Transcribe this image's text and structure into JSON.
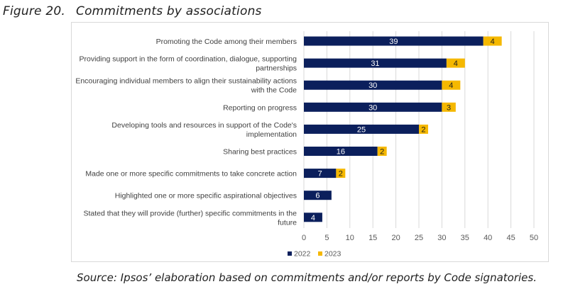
{
  "figure": {
    "number": "Figure 20.",
    "title": "Commitments by associations",
    "source": "Source: Ipsos’ elaboration based on commitments and/or reports by Code signatories."
  },
  "chart_data": {
    "type": "bar",
    "orientation": "horizontal",
    "stacked": true,
    "categories": [
      [
        "Promoting the Code among their members"
      ],
      [
        "Providing support in the form of coordination, dialogue, supporting",
        "partnerships"
      ],
      [
        "Encouraging individual members to align their sustainability actions",
        "with the Code"
      ],
      [
        "Reporting on progress"
      ],
      [
        "Developing tools and resources in support of the Code's",
        "implementation"
      ],
      [
        "Sharing best practices"
      ],
      [
        "Made one or more specific commitments to take concrete action"
      ],
      [
        "Highlighted one or more specific aspirational objectives"
      ],
      [
        "Stated that they will provide (further) specific commitments in the",
        "future"
      ]
    ],
    "series": [
      {
        "name": "2022",
        "color": "#0b1f5c",
        "values": [
          39,
          31,
          30,
          30,
          25,
          16,
          7,
          6,
          4
        ]
      },
      {
        "name": "2023",
        "color": "#f5b800",
        "values": [
          4,
          4,
          4,
          3,
          2,
          2,
          2,
          null,
          null
        ]
      }
    ],
    "xlim": [
      0,
      50
    ],
    "xticks": [
      0,
      5,
      10,
      15,
      20,
      25,
      30,
      35,
      40,
      45,
      50
    ],
    "grid": "vertical",
    "legend": "bottom",
    "label_color_2022": "#ffffff",
    "label_color_2023": "#1f1f1f"
  }
}
